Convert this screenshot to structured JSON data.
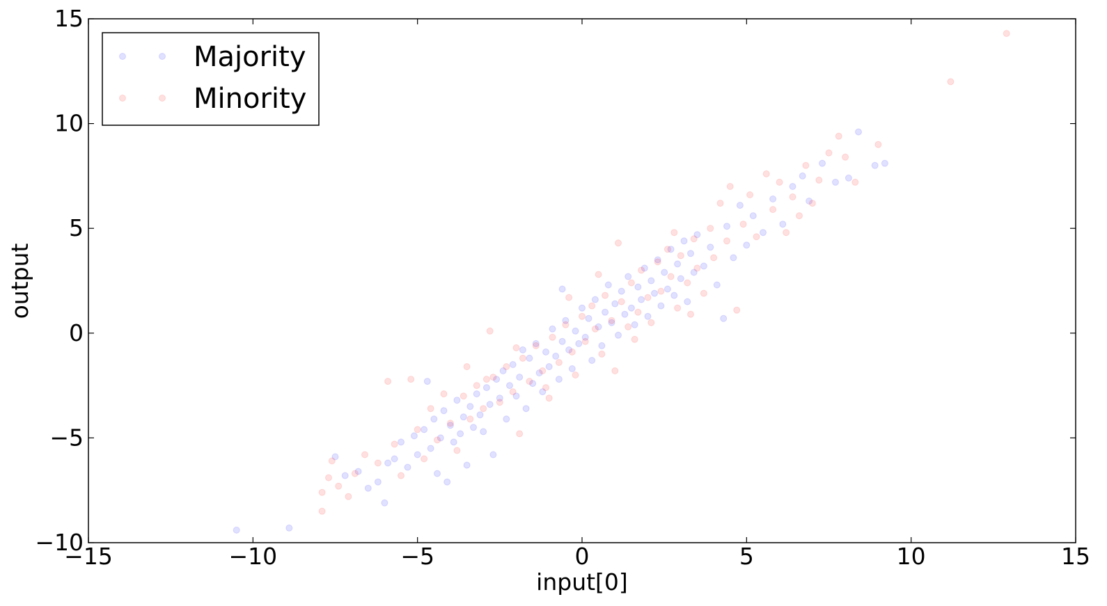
{
  "chart_data": {
    "type": "scatter",
    "xlabel": "input[0]",
    "ylabel": "output",
    "xlim": [
      -15,
      15
    ],
    "ylim": [
      -10,
      15
    ],
    "xticks": [
      -15,
      -10,
      -5,
      0,
      5,
      10,
      15
    ],
    "yticks": [
      -10,
      -5,
      0,
      5,
      10,
      15
    ],
    "xtick_labels": [
      "−15",
      "−10",
      "−5",
      "0",
      "5",
      "10",
      "15"
    ],
    "ytick_labels": [
      "−10",
      "−5",
      "0",
      "5",
      "10",
      "15"
    ],
    "grid": false,
    "legend": {
      "placement": "upper-left"
    },
    "series": [
      {
        "name": "Majority",
        "color": "#0000ff",
        "alpha": 0.12,
        "points": [
          [
            -10.5,
            -9.4
          ],
          [
            -8.9,
            -9.3
          ],
          [
            -7.5,
            -5.9
          ],
          [
            -7.2,
            -6.8
          ],
          [
            -6.8,
            -6.6
          ],
          [
            -6.5,
            -7.4
          ],
          [
            -6.2,
            -7.1
          ],
          [
            -6.0,
            -8.1
          ],
          [
            -5.9,
            -6.2
          ],
          [
            -5.7,
            -6.0
          ],
          [
            -5.5,
            -5.2
          ],
          [
            -5.3,
            -6.4
          ],
          [
            -5.1,
            -4.9
          ],
          [
            -5.0,
            -5.8
          ],
          [
            -4.8,
            -4.6
          ],
          [
            -4.7,
            -2.3
          ],
          [
            -4.6,
            -5.5
          ],
          [
            -4.5,
            -4.1
          ],
          [
            -4.4,
            -6.7
          ],
          [
            -4.3,
            -5.0
          ],
          [
            -4.2,
            -3.7
          ],
          [
            -4.1,
            -7.1
          ],
          [
            -4.0,
            -4.4
          ],
          [
            -3.9,
            -5.2
          ],
          [
            -3.8,
            -3.2
          ],
          [
            -3.7,
            -4.8
          ],
          [
            -3.6,
            -4.0
          ],
          [
            -3.5,
            -6.3
          ],
          [
            -3.4,
            -3.5
          ],
          [
            -3.3,
            -4.5
          ],
          [
            -3.2,
            -2.9
          ],
          [
            -3.1,
            -3.9
          ],
          [
            -3.0,
            -4.7
          ],
          [
            -2.9,
            -2.6
          ],
          [
            -2.8,
            -3.4
          ],
          [
            -2.7,
            -5.8
          ],
          [
            -2.6,
            -2.2
          ],
          [
            -2.5,
            -3.1
          ],
          [
            -2.4,
            -1.8
          ],
          [
            -2.3,
            -4.1
          ],
          [
            -2.2,
            -2.5
          ],
          [
            -2.1,
            -1.5
          ],
          [
            -2.0,
            -3.0
          ],
          [
            -1.9,
            -2.1
          ],
          [
            -1.8,
            -0.8
          ],
          [
            -1.7,
            -3.6
          ],
          [
            -1.6,
            -1.2
          ],
          [
            -1.5,
            -2.4
          ],
          [
            -1.4,
            -0.5
          ],
          [
            -1.3,
            -1.9
          ],
          [
            -1.2,
            -2.8
          ],
          [
            -1.1,
            -0.9
          ],
          [
            -1.0,
            -1.6
          ],
          [
            -0.9,
            0.2
          ],
          [
            -0.8,
            -1.1
          ],
          [
            -0.7,
            -2.2
          ],
          [
            -0.6,
            -0.4
          ],
          [
            -0.5,
            0.6
          ],
          [
            -0.4,
            -0.8
          ],
          [
            -0.3,
            -1.7
          ],
          [
            -0.2,
            0.1
          ],
          [
            -0.1,
            -0.5
          ],
          [
            0.0,
            1.2
          ],
          [
            0.1,
            -0.2
          ],
          [
            0.2,
            0.7
          ],
          [
            0.3,
            -1.3
          ],
          [
            0.4,
            1.6
          ],
          [
            0.5,
            0.3
          ],
          [
            0.6,
            -0.6
          ],
          [
            0.7,
            1.0
          ],
          [
            0.8,
            2.3
          ],
          [
            0.9,
            0.5
          ],
          [
            1.0,
            1.4
          ],
          [
            1.1,
            -0.1
          ],
          [
            1.2,
            2.0
          ],
          [
            1.3,
            0.9
          ],
          [
            1.4,
            2.7
          ],
          [
            1.5,
            1.2
          ],
          [
            1.6,
            0.4
          ],
          [
            1.7,
            2.2
          ],
          [
            1.8,
            1.6
          ],
          [
            1.9,
            3.1
          ],
          [
            2.0,
            0.8
          ],
          [
            2.1,
            2.5
          ],
          [
            2.2,
            1.9
          ],
          [
            2.3,
            3.5
          ],
          [
            2.4,
            1.3
          ],
          [
            2.5,
            2.9
          ],
          [
            2.6,
            2.1
          ],
          [
            2.7,
            4.0
          ],
          [
            2.8,
            1.8
          ],
          [
            2.9,
            3.3
          ],
          [
            3.0,
            2.6
          ],
          [
            3.1,
            4.4
          ],
          [
            3.2,
            1.5
          ],
          [
            3.3,
            3.8
          ],
          [
            3.4,
            2.9
          ],
          [
            3.5,
            4.7
          ],
          [
            3.7,
            3.2
          ],
          [
            3.9,
            4.1
          ],
          [
            4.1,
            2.3
          ],
          [
            4.3,
            0.7
          ],
          [
            4.4,
            5.1
          ],
          [
            4.6,
            3.6
          ],
          [
            4.8,
            6.1
          ],
          [
            5.0,
            4.2
          ],
          [
            5.2,
            5.6
          ],
          [
            5.5,
            4.8
          ],
          [
            5.8,
            6.4
          ],
          [
            6.1,
            5.2
          ],
          [
            6.4,
            7.0
          ],
          [
            6.7,
            7.5
          ],
          [
            6.9,
            6.3
          ],
          [
            7.3,
            8.1
          ],
          [
            7.7,
            7.2
          ],
          [
            8.1,
            7.4
          ],
          [
            8.4,
            9.6
          ],
          [
            8.9,
            8.0
          ],
          [
            9.2,
            8.1
          ],
          [
            -0.6,
            2.1
          ]
        ]
      },
      {
        "name": "Minority",
        "color": "#ff0000",
        "alpha": 0.12,
        "points": [
          [
            -7.9,
            -8.5
          ],
          [
            -7.9,
            -7.6
          ],
          [
            -7.7,
            -6.9
          ],
          [
            -7.6,
            -6.1
          ],
          [
            -7.4,
            -7.3
          ],
          [
            -7.1,
            -7.8
          ],
          [
            -6.9,
            -6.7
          ],
          [
            -6.6,
            -5.8
          ],
          [
            -6.2,
            -6.2
          ],
          [
            -5.9,
            -2.3
          ],
          [
            -5.7,
            -5.3
          ],
          [
            -5.5,
            -6.8
          ],
          [
            -5.2,
            -2.2
          ],
          [
            -5.0,
            -4.6
          ],
          [
            -4.8,
            -6.0
          ],
          [
            -4.6,
            -3.6
          ],
          [
            -4.4,
            -5.1
          ],
          [
            -4.2,
            -2.9
          ],
          [
            -4.0,
            -4.3
          ],
          [
            -3.8,
            -5.6
          ],
          [
            -3.6,
            -3.0
          ],
          [
            -3.4,
            -4.1
          ],
          [
            -3.2,
            -2.5
          ],
          [
            -3.0,
            -3.6
          ],
          [
            -2.8,
            0.1
          ],
          [
            -2.7,
            -2.1
          ],
          [
            -2.5,
            -3.3
          ],
          [
            -2.3,
            -1.6
          ],
          [
            -2.1,
            -2.8
          ],
          [
            -1.9,
            -4.8
          ],
          [
            -1.8,
            -1.2
          ],
          [
            -1.6,
            -2.3
          ],
          [
            -1.4,
            -0.6
          ],
          [
            -1.2,
            -1.8
          ],
          [
            -1.0,
            -3.1
          ],
          [
            -0.9,
            -0.2
          ],
          [
            -0.7,
            -1.4
          ],
          [
            -0.5,
            0.4
          ],
          [
            -0.3,
            -0.9
          ],
          [
            -0.2,
            -2.0
          ],
          [
            0.0,
            0.8
          ],
          [
            0.1,
            -0.4
          ],
          [
            0.3,
            1.3
          ],
          [
            0.4,
            0.2
          ],
          [
            0.6,
            -1.0
          ],
          [
            0.7,
            1.8
          ],
          [
            0.9,
            0.6
          ],
          [
            1.0,
            -1.8
          ],
          [
            1.1,
            4.3
          ],
          [
            1.2,
            1.5
          ],
          [
            1.4,
            0.3
          ],
          [
            1.5,
            2.4
          ],
          [
            1.7,
            1.0
          ],
          [
            1.8,
            3.0
          ],
          [
            2.0,
            1.7
          ],
          [
            2.1,
            0.5
          ],
          [
            2.3,
            3.4
          ],
          [
            2.4,
            2.0
          ],
          [
            2.6,
            4.0
          ],
          [
            2.7,
            2.7
          ],
          [
            2.9,
            1.2
          ],
          [
            3.0,
            3.7
          ],
          [
            3.2,
            2.4
          ],
          [
            3.4,
            4.5
          ],
          [
            3.5,
            3.1
          ],
          [
            3.7,
            1.9
          ],
          [
            3.9,
            5.0
          ],
          [
            4.0,
            3.6
          ],
          [
            4.2,
            6.2
          ],
          [
            4.4,
            4.4
          ],
          [
            4.5,
            7.0
          ],
          [
            4.7,
            1.1
          ],
          [
            4.9,
            5.2
          ],
          [
            5.1,
            6.6
          ],
          [
            5.3,
            4.6
          ],
          [
            5.6,
            7.6
          ],
          [
            5.8,
            5.9
          ],
          [
            6.0,
            7.2
          ],
          [
            6.2,
            4.8
          ],
          [
            6.4,
            6.5
          ],
          [
            6.6,
            5.6
          ],
          [
            6.8,
            8.0
          ],
          [
            7.0,
            6.2
          ],
          [
            7.2,
            7.3
          ],
          [
            7.5,
            8.6
          ],
          [
            7.8,
            9.4
          ],
          [
            8.0,
            8.4
          ],
          [
            8.3,
            7.2
          ],
          [
            9.0,
            9.0
          ],
          [
            11.2,
            12.0
          ],
          [
            12.9,
            14.3
          ],
          [
            -2.9,
            -2.2
          ],
          [
            -2.0,
            -0.7
          ],
          [
            -1.1,
            -2.6
          ],
          [
            -0.4,
            1.7
          ],
          [
            0.5,
            2.8
          ],
          [
            1.6,
            -0.3
          ],
          [
            2.8,
            4.8
          ],
          [
            3.3,
            0.9
          ],
          [
            -3.5,
            -1.6
          ]
        ]
      }
    ]
  }
}
